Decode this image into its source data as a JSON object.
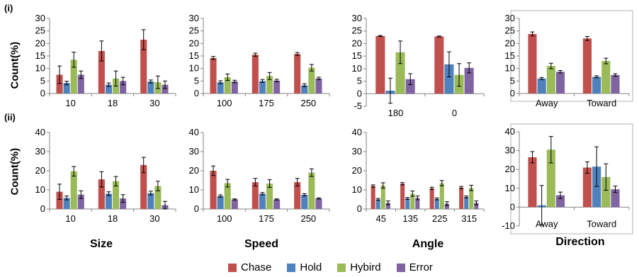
{
  "row_labels": [
    "(i)",
    "(ii)"
  ],
  "ylabel": "Count(%)",
  "column_titles": [
    "Size",
    "Speed",
    "Angle",
    "Direction"
  ],
  "series_names": [
    "Chase",
    "Hold",
    "Hybird",
    "Error"
  ],
  "colors": [
    "#c0504d",
    "#4f81bd",
    "#9bbb59",
    "#8064a2"
  ],
  "chart_data": [
    {
      "type": "bar",
      "id": "i-size",
      "categories": [
        "10",
        "18",
        "30"
      ],
      "ylim": [
        0,
        30
      ],
      "yticks": [
        0,
        5,
        10,
        15,
        20,
        25,
        30
      ],
      "series": [
        {
          "name": "Chase",
          "values": [
            7.5,
            17,
            21.5
          ],
          "errors": [
            3.5,
            4,
            4
          ]
        },
        {
          "name": "Hold",
          "values": [
            4.2,
            3.5,
            4.8
          ],
          "errors": [
            0.7,
            0.7,
            0.6
          ]
        },
        {
          "name": "Hybird",
          "values": [
            13.5,
            6,
            4.5
          ],
          "errors": [
            3,
            3,
            2.5
          ]
        },
        {
          "name": "Error",
          "values": [
            7.5,
            5,
            3.5
          ],
          "errors": [
            1.5,
            1.5,
            1.5
          ]
        }
      ]
    },
    {
      "type": "bar",
      "id": "i-speed",
      "categories": [
        "100",
        "175",
        "250"
      ],
      "ylim": [
        0,
        30
      ],
      "yticks": [
        0,
        5,
        10,
        15,
        20,
        25,
        30
      ],
      "series": [
        {
          "name": "Chase",
          "values": [
            14.2,
            15.5,
            15.8
          ],
          "errors": [
            0.6,
            0.6,
            0.6
          ]
        },
        {
          "name": "Hold",
          "values": [
            4.5,
            5,
            3.3
          ],
          "errors": [
            0.6,
            0.6,
            0.6
          ]
        },
        {
          "name": "Hybird",
          "values": [
            6.5,
            7,
            10.3
          ],
          "errors": [
            1.3,
            1.4,
            1.3
          ]
        },
        {
          "name": "Error",
          "values": [
            4.8,
            5.2,
            6
          ],
          "errors": [
            0.5,
            0.5,
            0.5
          ]
        }
      ]
    },
    {
      "type": "bar",
      "id": "i-angle",
      "categories": [
        "180",
        "0"
      ],
      "ylim": [
        -5,
        30
      ],
      "yticks": [
        -5,
        0,
        5,
        10,
        15,
        20,
        25,
        30
      ],
      "series": [
        {
          "name": "Chase",
          "values": [
            23,
            22.8
          ],
          "errors": [
            0.2,
            0.2
          ]
        },
        {
          "name": "Hold",
          "values": [
            1.2,
            11.7
          ],
          "errors": [
            5,
            5
          ]
        },
        {
          "name": "Hybird",
          "values": [
            16.5,
            7.5
          ],
          "errors": [
            4.5,
            4.5
          ]
        },
        {
          "name": "Error",
          "values": [
            5.8,
            10.3
          ],
          "errors": [
            2.2,
            2
          ]
        }
      ]
    },
    {
      "type": "bar",
      "id": "i-direction",
      "categories": [
        "Away",
        "Toward"
      ],
      "ylim": [
        0,
        30
      ],
      "yticks": [
        0,
        5,
        10,
        15,
        20,
        25,
        30
      ],
      "series": [
        {
          "name": "Chase",
          "values": [
            23.8,
            22
          ],
          "errors": [
            0.8,
            0.8
          ]
        },
        {
          "name": "Hold",
          "values": [
            6,
            6.7
          ],
          "errors": [
            0.4,
            0.4
          ]
        },
        {
          "name": "Hybird",
          "values": [
            11,
            13
          ],
          "errors": [
            1.1,
            1.1
          ]
        },
        {
          "name": "Error",
          "values": [
            8.7,
            7.4
          ],
          "errors": [
            0.5,
            0.5
          ]
        }
      ]
    },
    {
      "type": "bar",
      "id": "ii-size",
      "categories": [
        "10",
        "18",
        "30"
      ],
      "ylim": [
        0,
        40
      ],
      "yticks": [
        0,
        10,
        20,
        30,
        40
      ],
      "series": [
        {
          "name": "Chase",
          "values": [
            9,
            15.5,
            23
          ],
          "errors": [
            4,
            4,
            4
          ]
        },
        {
          "name": "Hold",
          "values": [
            5.8,
            8,
            8.3
          ],
          "errors": [
            1,
            1,
            1
          ]
        },
        {
          "name": "Hybird",
          "values": [
            19.7,
            14.5,
            12
          ],
          "errors": [
            2.5,
            2.5,
            2.5
          ]
        },
        {
          "name": "Error",
          "values": [
            7.5,
            5.5,
            2
          ],
          "errors": [
            2,
            2,
            2
          ]
        }
      ]
    },
    {
      "type": "bar",
      "id": "ii-speed",
      "categories": [
        "100",
        "175",
        "250"
      ],
      "ylim": [
        0,
        40
      ],
      "yticks": [
        0,
        10,
        20,
        30,
        40
      ],
      "series": [
        {
          "name": "Chase",
          "values": [
            20,
            14,
            14
          ],
          "errors": [
            2.5,
            2,
            2
          ]
        },
        {
          "name": "Hold",
          "values": [
            6.8,
            8,
            7.4
          ],
          "errors": [
            0.6,
            0.6,
            0.6
          ]
        },
        {
          "name": "Hybird",
          "values": [
            13.5,
            13.3,
            19
          ],
          "errors": [
            2,
            2,
            2
          ]
        },
        {
          "name": "Error",
          "values": [
            5,
            5,
            5.5
          ],
          "errors": [
            0.3,
            0.3,
            0.3
          ]
        }
      ]
    },
    {
      "type": "bar",
      "id": "ii-angle",
      "categories": [
        "45",
        "135",
        "225",
        "315"
      ],
      "ylim": [
        0,
        40
      ],
      "yticks": [
        0,
        10,
        20,
        30,
        40
      ],
      "series": [
        {
          "name": "Chase",
          "values": [
            12,
            13.2,
            10.8,
            11.2
          ],
          "errors": [
            0.6,
            0.6,
            0.6,
            0.6
          ]
        },
        {
          "name": "Hold",
          "values": [
            5,
            5.5,
            5.3,
            6.3
          ],
          "errors": [
            0.5,
            0.5,
            0.5,
            0.5
          ]
        },
        {
          "name": "Hybird",
          "values": [
            12.3,
            8,
            13.5,
            11
          ],
          "errors": [
            1.4,
            1.4,
            1.4,
            1.4
          ]
        },
        {
          "name": "Error",
          "values": [
            3.2,
            5.8,
            2.8,
            3.2
          ],
          "errors": [
            1,
            1,
            1,
            1
          ]
        }
      ]
    },
    {
      "type": "bar",
      "id": "ii-direction",
      "categories": [
        "Away",
        "Toward"
      ],
      "ylim": [
        -10,
        40
      ],
      "yticks": [
        -10,
        0,
        10,
        20,
        30,
        40
      ],
      "series": [
        {
          "name": "Chase",
          "values": [
            26.5,
            21
          ],
          "errors": [
            3,
            3
          ]
        },
        {
          "name": "Hold",
          "values": [
            1,
            21.5
          ],
          "errors": [
            10.5,
            10.5
          ]
        },
        {
          "name": "Hybird",
          "values": [
            30.5,
            16
          ],
          "errors": [
            7,
            7
          ]
        },
        {
          "name": "Error",
          "values": [
            6.3,
            9.5
          ],
          "errors": [
            1.7,
            1.7
          ]
        }
      ]
    }
  ]
}
